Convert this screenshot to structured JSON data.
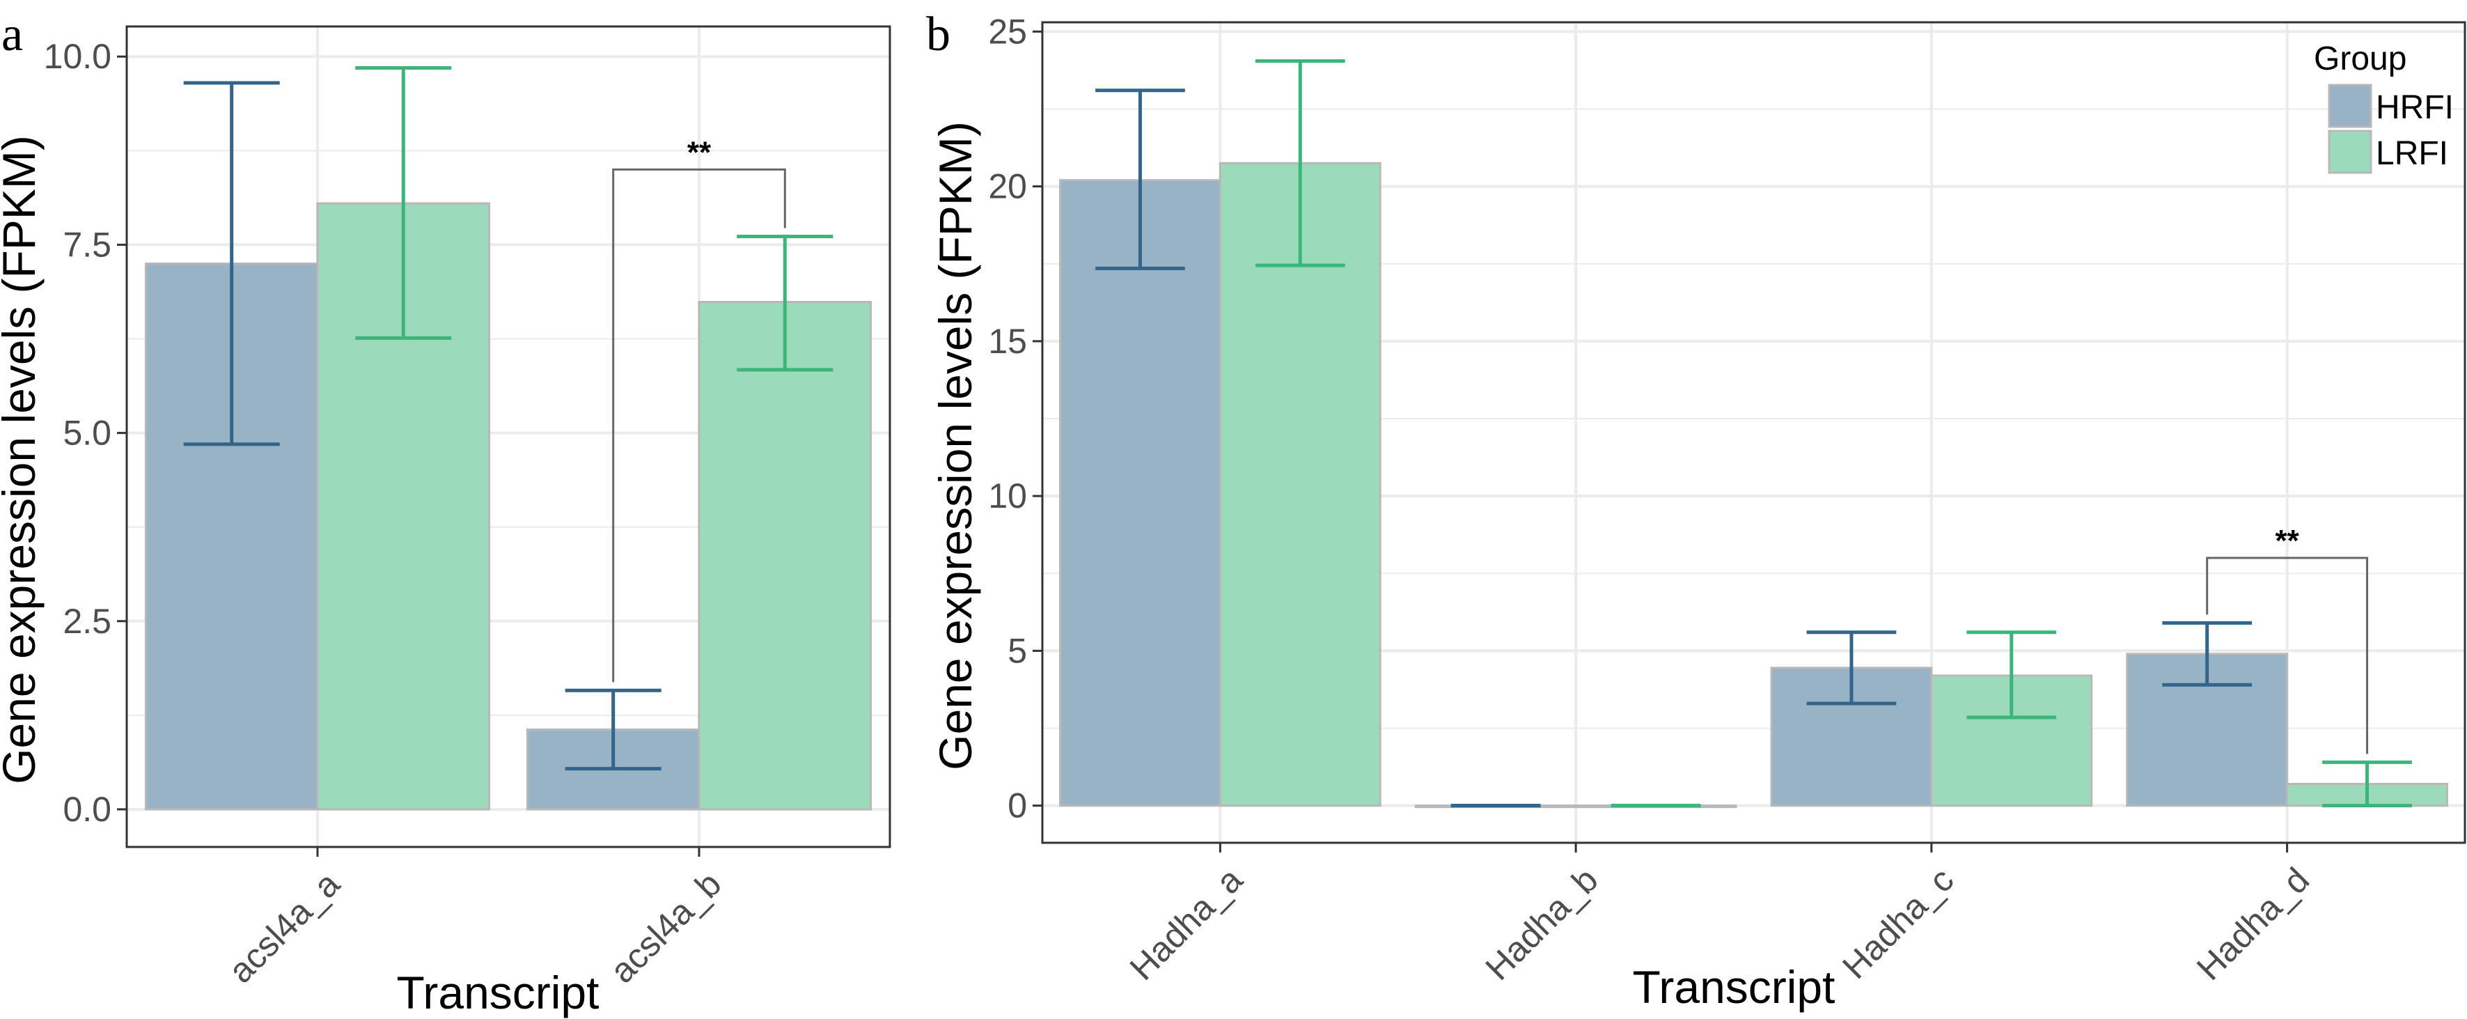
{
  "chart_data": [
    {
      "panel": "a",
      "type": "bar",
      "title": "",
      "xlabel": "Transcript",
      "ylabel": "Gene expression levels (FPKM)",
      "categories": [
        "acsl4a_a",
        "acsl4a_b"
      ],
      "ylim": [
        -0.5,
        10.4
      ],
      "yticks": [
        0.0,
        2.5,
        5.0,
        7.5,
        10.0
      ],
      "ytick_labels": [
        "0.0",
        "2.5",
        "5.0",
        "7.5",
        "10.0"
      ],
      "grid": true,
      "series": [
        {
          "name": "HRFI",
          "values": [
            7.25,
            1.06
          ],
          "err_low": [
            4.85,
            0.54
          ],
          "err_high": [
            9.65,
            1.58
          ]
        },
        {
          "name": "LRFI",
          "values": [
            8.05,
            6.74
          ],
          "err_low": [
            6.26,
            5.84
          ],
          "err_high": [
            9.85,
            7.61
          ]
        }
      ],
      "annotations": [
        {
          "text": "**",
          "category": "acsl4a_b",
          "between": [
            "HRFI",
            "LRFI"
          ],
          "y": 8.5
        }
      ]
    },
    {
      "panel": "b",
      "type": "bar",
      "title": "",
      "xlabel": "Transcript",
      "ylabel": "Gene expression levels (FPKM)",
      "categories": [
        "Hadha_a",
        "Hadha_b",
        "Hadha_c",
        "Hadha_d"
      ],
      "ylim": [
        -1.2,
        25.3
      ],
      "yticks": [
        0,
        5,
        10,
        15,
        20,
        25
      ],
      "ytick_labels": [
        "0",
        "5",
        "10",
        "15",
        "20",
        "25"
      ],
      "grid": true,
      "series": [
        {
          "name": "HRFI",
          "values": [
            20.2,
            0,
            4.45,
            4.9
          ],
          "err_low": [
            17.35,
            0,
            3.3,
            3.9
          ],
          "err_high": [
            23.1,
            0,
            5.6,
            5.9
          ]
        },
        {
          "name": "LRFI",
          "values": [
            20.75,
            0,
            4.2,
            0.7
          ],
          "err_low": [
            17.45,
            0,
            2.85,
            0
          ],
          "err_high": [
            24.05,
            0,
            5.6,
            1.4
          ]
        }
      ],
      "annotations": [
        {
          "text": "**",
          "category": "Hadha_d",
          "between": [
            "HRFI",
            "LRFI"
          ],
          "y": 8.0
        }
      ],
      "legend": {
        "title": "Group",
        "entries": [
          "HRFI",
          "LRFI"
        ],
        "position": "top-right"
      }
    }
  ],
  "colors": {
    "HRFI_fill": "#98b2c6",
    "HRFI_err": "#33658a",
    "LRFI_fill": "#9bdbbc",
    "LRFI_err": "#3bb57a",
    "bar_outline": "#b8b8b8",
    "grid": "#ebebeb",
    "axis": "#333333",
    "bracket": "#666666"
  },
  "labels": {
    "panel_a": "a",
    "panel_b": "b",
    "legend_title": "Group",
    "legend_hrfi": "HRFI",
    "legend_lrfi": "LRFI",
    "xlabel_a": "Transcript",
    "xlabel_b": "Transcript",
    "ylabel_a": "Gene expression levels (FPKM)",
    "ylabel_b": "Gene expression levels (FPKM)"
  }
}
